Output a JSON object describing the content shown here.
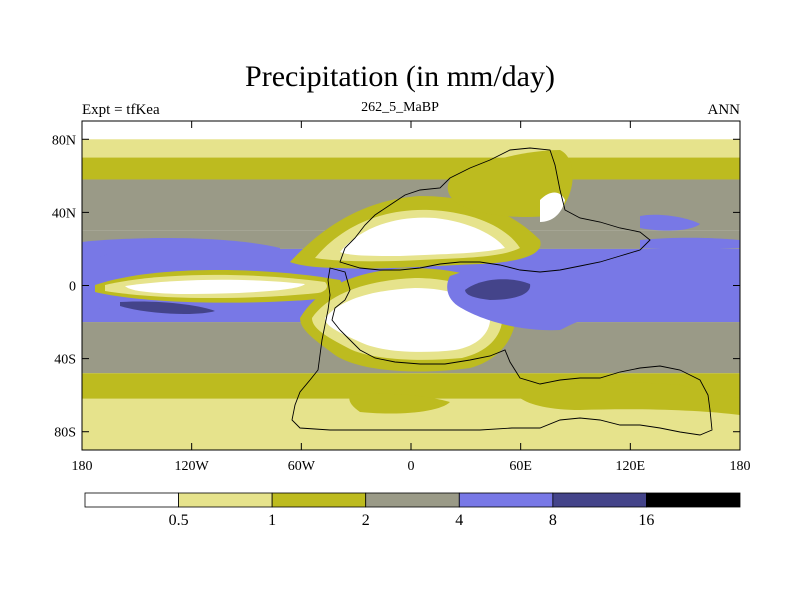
{
  "header": {
    "title": "Precipitation (in mm/day)",
    "left": "Expt = tfKea",
    "center": "262_5_MaBP",
    "right": "ANN"
  },
  "colors": {
    "level0": "#ffffff",
    "level1": "#e6e38c",
    "level2": "#bdbb1f",
    "level3": "#9a9a87",
    "level4": "#7878e6",
    "level5": "#44448a",
    "level6": "#000000"
  },
  "chart_data": {
    "type": "heatmap",
    "variable": "Precipitation",
    "units": "mm/day",
    "x_ticks": [
      "180",
      "120W",
      "60W",
      "0",
      "60E",
      "120E",
      "180"
    ],
    "y_ticks": [
      "80N",
      "40N",
      "0",
      "40S",
      "80S"
    ],
    "xlim": [
      -180,
      180
    ],
    "ylim": [
      -90,
      90
    ],
    "colorbar_levels": [
      "0.5",
      "1",
      "2",
      "4",
      "8",
      "16"
    ],
    "colorbar_bins": [
      "<0.5",
      "0.5-1",
      "1-2",
      "2-4",
      "4-8",
      "8-16",
      ">16"
    ],
    "zonal_bands": [
      {
        "lat_from": 90,
        "lat_to": 80,
        "bin": 0
      },
      {
        "lat_from": 80,
        "lat_to": 70,
        "bin": 1
      },
      {
        "lat_from": 70,
        "lat_to": 58,
        "bin": 2
      },
      {
        "lat_from": 58,
        "lat_to": 30,
        "bin": 3
      },
      {
        "lat_from": 30,
        "lat_to": 20,
        "bin": 3
      },
      {
        "lat_from": 20,
        "lat_to": -20,
        "bin": 4
      },
      {
        "lat_from": -20,
        "lat_to": -48,
        "bin": 3
      },
      {
        "lat_from": -48,
        "lat_to": -62,
        "bin": 2
      },
      {
        "lat_from": -62,
        "lat_to": -90,
        "bin": 1
      }
    ]
  }
}
